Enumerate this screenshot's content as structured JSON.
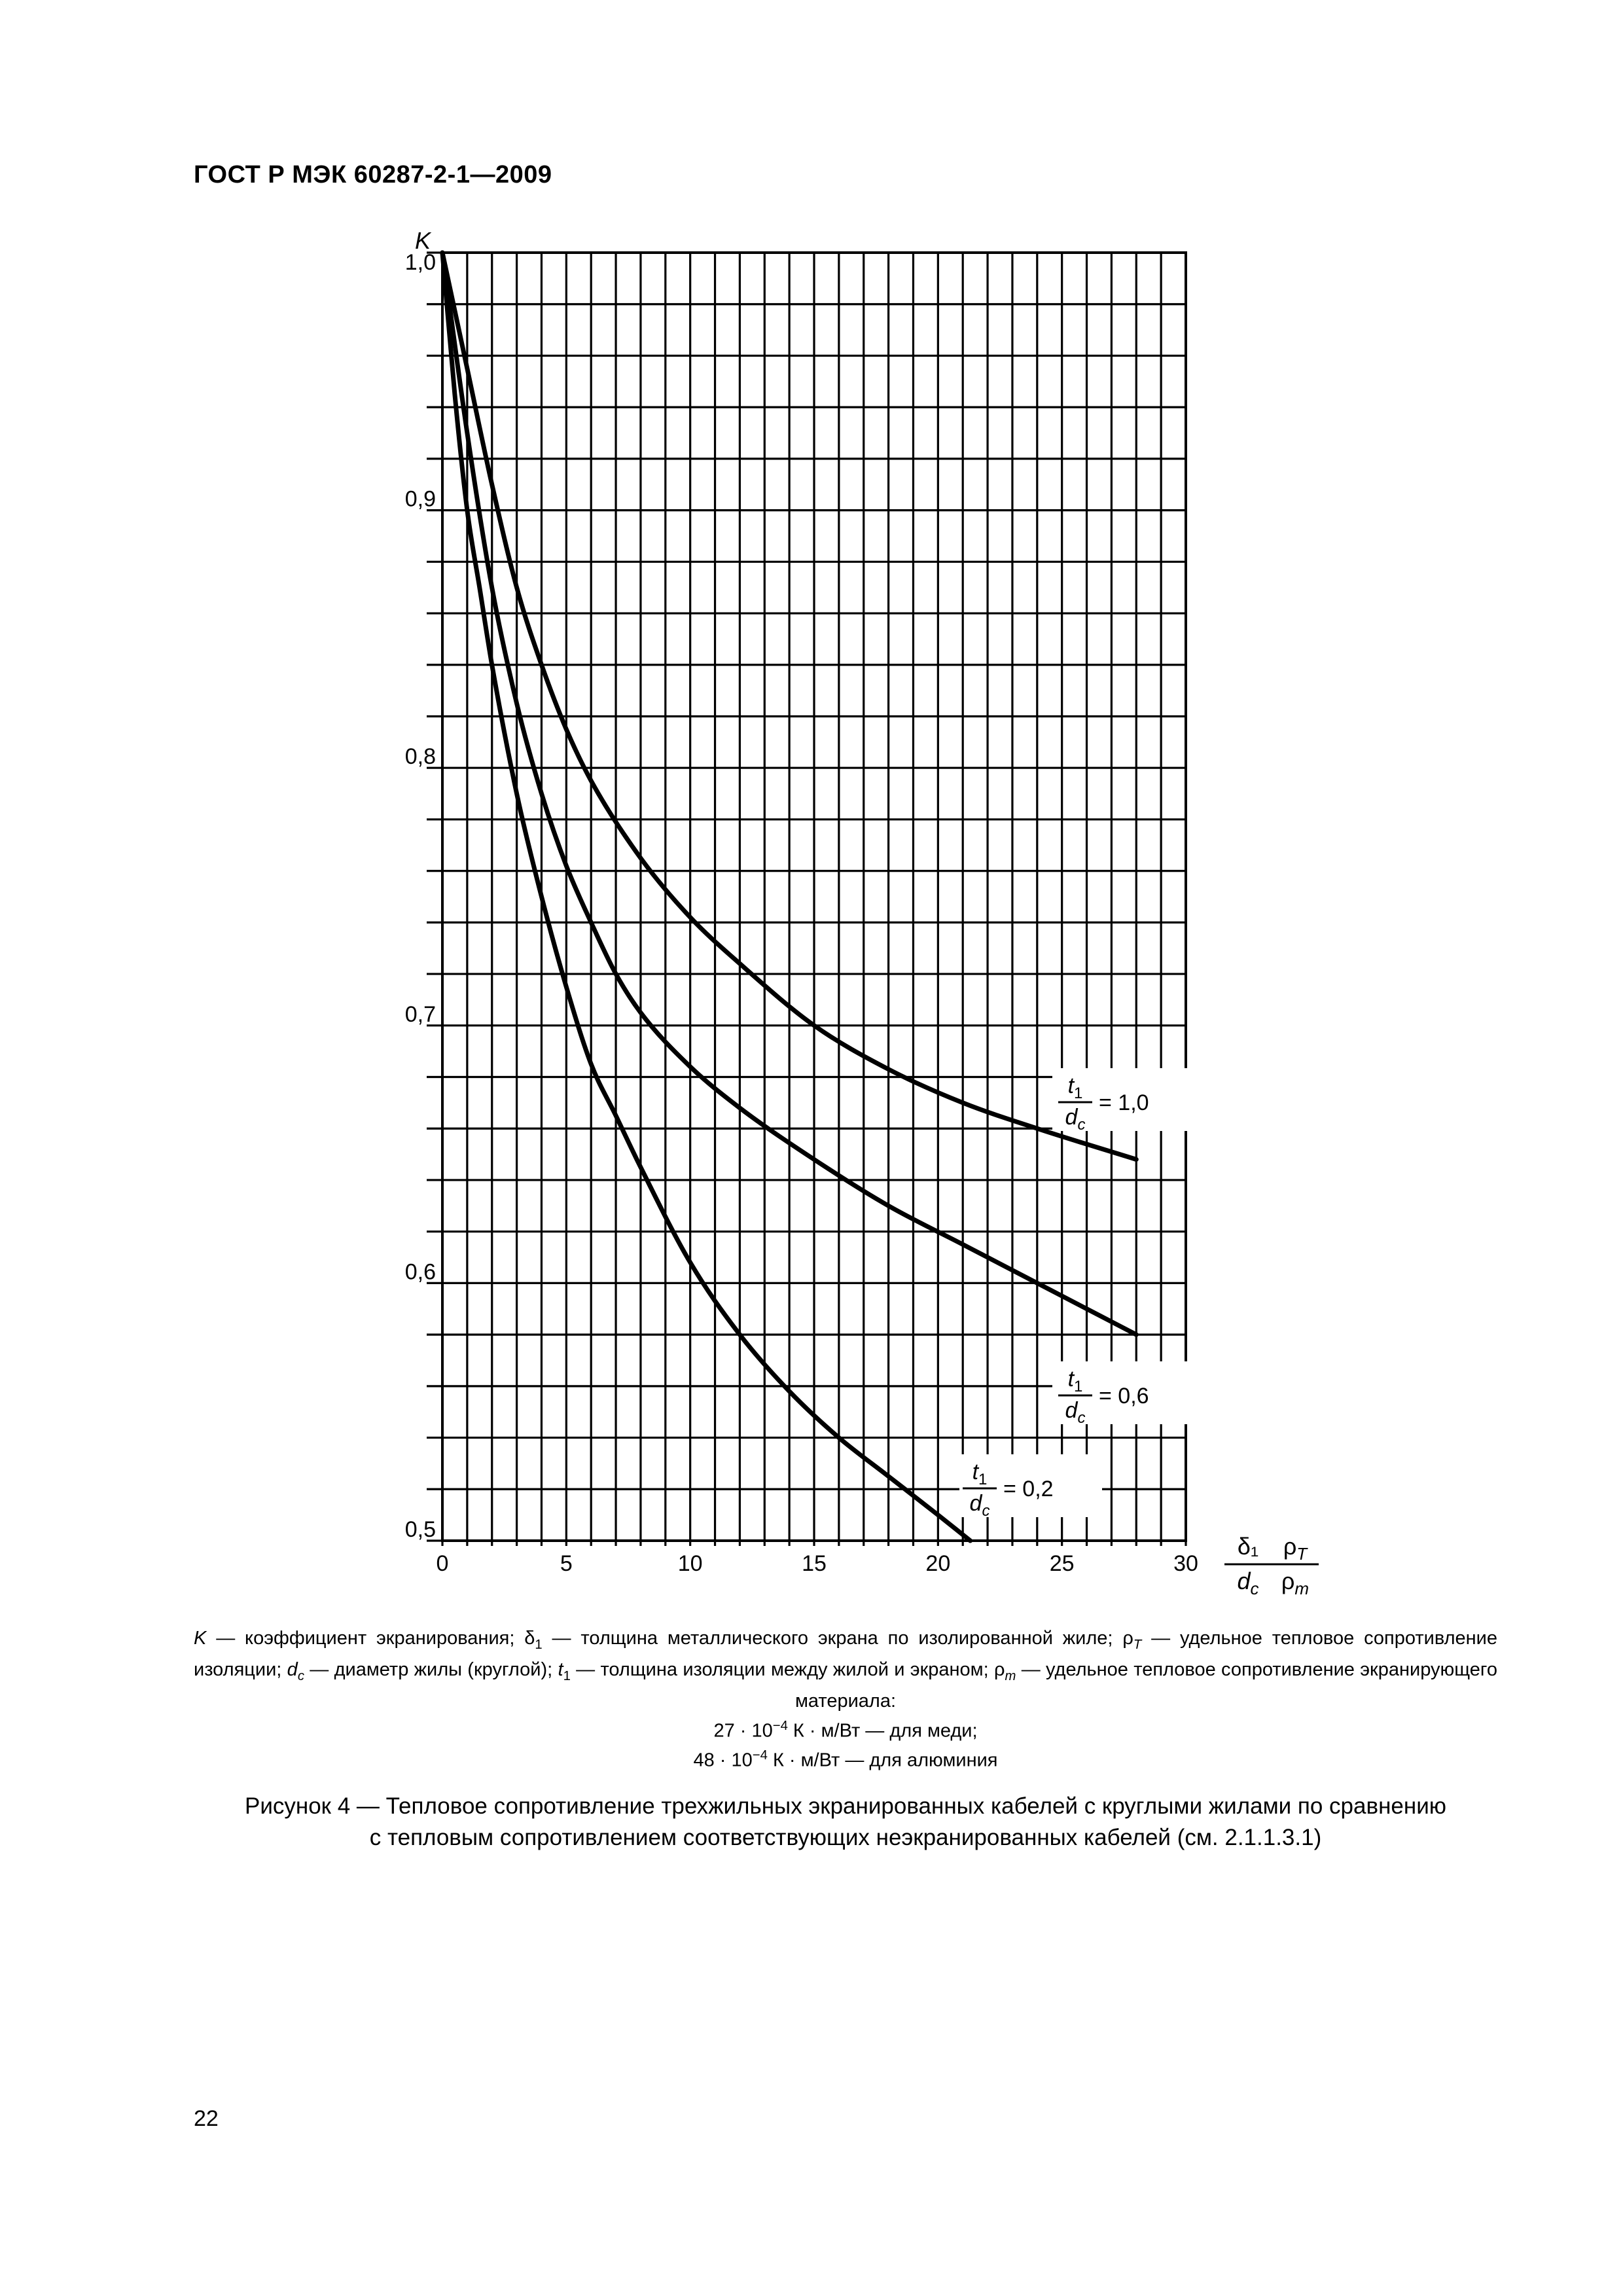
{
  "header": {
    "standard": "ГОСТ Р МЭК 60287-2-1—2009"
  },
  "chart_data": {
    "type": "line",
    "y_axis_label": "K",
    "x_axis_label": {
      "numerator_left": "δ₁",
      "denominator_left": "d",
      "denominator_left_sub": "c",
      "numerator_right": "ρ",
      "numerator_right_sub": "T",
      "denominator_right": "ρ",
      "denominator_right_sub": "m"
    },
    "xlim": [
      0,
      30
    ],
    "ylim": [
      0.5,
      1.0
    ],
    "x_ticks": [
      0,
      5,
      10,
      15,
      20,
      25,
      30
    ],
    "x_tick_labels": [
      "0",
      "5",
      "10",
      "15",
      "20",
      "25",
      "30"
    ],
    "y_ticks": [
      0.5,
      0.6,
      0.7,
      0.8,
      0.9,
      1.0
    ],
    "y_tick_labels": [
      "0,5",
      "0,6",
      "0,7",
      "0,8",
      "0,9",
      "1,0"
    ],
    "grid": {
      "x_step": 1,
      "y_step": 0.02,
      "shown": true
    },
    "series": [
      {
        "ratio_label": {
          "num": "t",
          "num_sub": "1",
          "den": "d",
          "den_sub": "c",
          "value": "= 1,0"
        },
        "x": [
          0,
          1,
          2,
          3,
          4,
          5,
          6,
          8,
          10,
          12,
          15,
          18,
          21,
          24,
          28
        ],
        "y": [
          1.0,
          0.955,
          0.91,
          0.87,
          0.84,
          0.815,
          0.795,
          0.765,
          0.742,
          0.724,
          0.7,
          0.683,
          0.67,
          0.66,
          0.648
        ]
      },
      {
        "ratio_label": {
          "num": "t",
          "num_sub": "1",
          "den": "d",
          "den_sub": "c",
          "value": "= 0,6"
        },
        "x": [
          0,
          1,
          2,
          3,
          4,
          5,
          6,
          7,
          8,
          10,
          12,
          15,
          18,
          21,
          24,
          28
        ],
        "y": [
          1.0,
          0.93,
          0.87,
          0.825,
          0.79,
          0.762,
          0.74,
          0.72,
          0.705,
          0.684,
          0.668,
          0.648,
          0.63,
          0.615,
          0.6,
          0.58
        ]
      },
      {
        "ratio_label": {
          "num": "t",
          "num_sub": "1",
          "den": "d",
          "den_sub": "c",
          "value": "= 0,2"
        },
        "x": [
          0,
          0.5,
          1,
          1.5,
          2,
          3,
          4,
          5,
          6,
          7,
          8,
          10,
          12,
          14,
          16,
          18,
          20,
          21.3
        ],
        "y": [
          1.0,
          0.945,
          0.9,
          0.87,
          0.84,
          0.79,
          0.75,
          0.715,
          0.685,
          0.665,
          0.645,
          0.608,
          0.58,
          0.558,
          0.54,
          0.525,
          0.51,
          0.5
        ]
      }
    ]
  },
  "legend": {
    "line1_k": "K",
    "line1_a": " — коэффициент экранирования; δ",
    "line1_a_sub": "1",
    "line1_b": " — толщина металлического экрана по изолированной жиле; ρ",
    "line1_b_sub": "T",
    "line1_c": " — удельное тепловое сопротивление изоляции; ",
    "line1_dc": "d",
    "line1_dc_sub": "c",
    "line1_d": " — диаметр жилы (круглой); ",
    "line1_t1": "t",
    "line1_t1_sub": "1",
    "line1_e": " — толщина изоляции между жилой и экраном; ρ",
    "line1_e_sub": "m",
    "line1_f": " — удельное тепловое сопротивление экранирующего материала:",
    "copper_a": "27 · 10",
    "copper_sup": "−4",
    "copper_b": " К · м/Вт — для меди;",
    "aluminium_a": "48 · 10",
    "aluminium_sup": "−4",
    "aluminium_b": " К · м/Вт — для алюминия"
  },
  "caption": {
    "line1": "Рисунок 4 — Тепловое сопротивление трехжильных экранированных кабелей с круглыми жилами по сравнению",
    "line2": "с тепловым сопротивлением соответствующих неэкранированных кабелей (см. 2.1.1.3.1)"
  },
  "page_number": "22"
}
